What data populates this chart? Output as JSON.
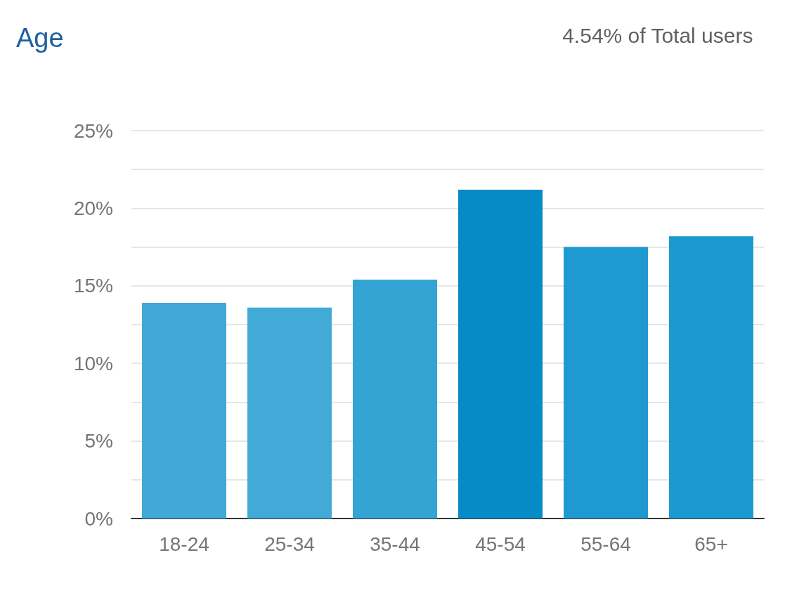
{
  "chart_data": {
    "type": "bar",
    "title": "Age",
    "subtitle": "4.54% of Total users",
    "categories": [
      "18-24",
      "25-34",
      "35-44",
      "45-54",
      "55-64",
      "65+"
    ],
    "values": [
      13.9,
      13.6,
      15.4,
      21.2,
      17.5,
      18.2
    ],
    "colors": [
      "#41a9d6",
      "#42aad7",
      "#33a4d4",
      "#078bc6",
      "#1f9ad1",
      "#1b99d0"
    ],
    "ylim": [
      0,
      25
    ],
    "yticks": [
      {
        "value": 0,
        "label": "0%"
      },
      {
        "value": 2.5,
        "label": null
      },
      {
        "value": 5,
        "label": "5%"
      },
      {
        "value": 7.5,
        "label": null
      },
      {
        "value": 10,
        "label": "10%"
      },
      {
        "value": 12.5,
        "label": null
      },
      {
        "value": 15,
        "label": "15%"
      },
      {
        "value": 17.5,
        "label": null
      },
      {
        "value": 20,
        "label": "20%"
      },
      {
        "value": 22.5,
        "label": null
      },
      {
        "value": 25,
        "label": "25%"
      }
    ],
    "grid": "y"
  }
}
